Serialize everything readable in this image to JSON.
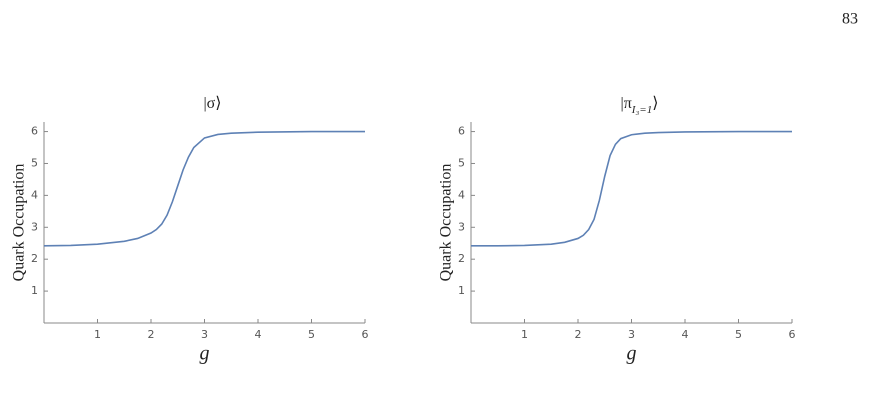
{
  "page_number": "83",
  "chart_data": [
    {
      "type": "line",
      "title": "|σ⟩",
      "xlabel": "g",
      "ylabel": "Quark Occupation",
      "x": [
        0,
        0.5,
        1,
        1.5,
        1.75,
        2,
        2.1,
        2.2,
        2.3,
        2.4,
        2.5,
        2.6,
        2.7,
        2.8,
        3,
        3.25,
        3.5,
        4,
        5,
        6
      ],
      "series": [
        {
          "color": "#5e81b5",
          "values": [
            2.42,
            2.43,
            2.47,
            2.56,
            2.65,
            2.82,
            2.93,
            3.1,
            3.38,
            3.8,
            4.3,
            4.8,
            5.2,
            5.5,
            5.8,
            5.91,
            5.95,
            5.98,
            6.0,
            6.0
          ]
        }
      ],
      "xlim": [
        0,
        6
      ],
      "ylim": [
        0,
        6.3
      ],
      "xticks": [
        1,
        2,
        3,
        4,
        5,
        6
      ],
      "yticks": [
        1,
        2,
        3,
        4,
        5,
        6
      ]
    },
    {
      "type": "line",
      "title": "|π",
      "title_subscript": "I₃=1",
      "title_end": "⟩",
      "xlabel": "g",
      "ylabel": "Quark Occupation",
      "x": [
        0,
        0.5,
        1,
        1.5,
        1.75,
        2,
        2.1,
        2.2,
        2.3,
        2.4,
        2.5,
        2.6,
        2.7,
        2.8,
        3,
        3.25,
        3.5,
        4,
        5,
        6
      ],
      "series": [
        {
          "color": "#5e81b5",
          "values": [
            2.42,
            2.42,
            2.43,
            2.47,
            2.53,
            2.65,
            2.75,
            2.93,
            3.25,
            3.85,
            4.6,
            5.25,
            5.6,
            5.78,
            5.9,
            5.95,
            5.97,
            5.99,
            6.0,
            6.0
          ]
        }
      ],
      "xlim": [
        0,
        6
      ],
      "ylim": [
        0,
        6.3
      ],
      "xticks": [
        1,
        2,
        3,
        4,
        5,
        6
      ],
      "yticks": [
        1,
        2,
        3,
        4,
        5,
        6
      ]
    }
  ]
}
